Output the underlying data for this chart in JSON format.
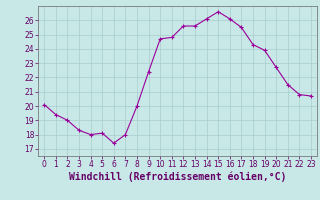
{
  "x": [
    0,
    1,
    2,
    3,
    4,
    5,
    6,
    7,
    8,
    9,
    10,
    11,
    12,
    13,
    14,
    15,
    16,
    17,
    18,
    19,
    20,
    21,
    22,
    23
  ],
  "y": [
    20.1,
    19.4,
    19.0,
    18.3,
    18.0,
    18.1,
    17.4,
    18.0,
    20.0,
    22.4,
    24.7,
    24.8,
    25.6,
    25.6,
    26.1,
    26.6,
    26.1,
    25.5,
    24.3,
    23.9,
    22.7,
    21.5,
    20.8,
    20.7
  ],
  "line_color": "#990099",
  "marker": "+",
  "bg_color": "#c8e8e8",
  "grid_color": "#aacccc",
  "xlabel": "Windchill (Refroidissement éolien,°C)",
  "xlabel_color": "#660066",
  "xlim": [
    -0.5,
    23.5
  ],
  "ylim": [
    16.5,
    27.0
  ],
  "yticks": [
    17,
    18,
    19,
    20,
    21,
    22,
    23,
    24,
    25,
    26
  ],
  "xticks": [
    0,
    1,
    2,
    3,
    4,
    5,
    6,
    7,
    8,
    9,
    10,
    11,
    12,
    13,
    14,
    15,
    16,
    17,
    18,
    19,
    20,
    21,
    22,
    23
  ],
  "tick_color": "#660066",
  "tick_fontsize": 5.5,
  "xlabel_fontsize": 7.0,
  "spine_color": "#666666"
}
